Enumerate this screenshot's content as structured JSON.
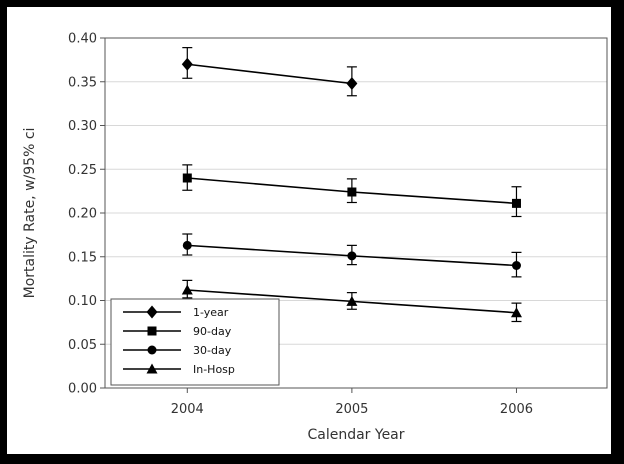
{
  "chart_data": {
    "type": "line",
    "title": "",
    "xlabel": "Calendar Year",
    "ylabel": "Mortality Rate, w/95% ci",
    "x": [
      "2004",
      "2005",
      "2006"
    ],
    "xlim": [
      2003.5,
      2006.55
    ],
    "ylim": [
      0.0,
      0.4
    ],
    "yticks": [
      "0.00",
      "0.05",
      "0.10",
      "0.15",
      "0.20",
      "0.25",
      "0.30",
      "0.35",
      "0.40"
    ],
    "grid": "horizontal",
    "legend_position": "bottom-left",
    "series": [
      {
        "name": "1-year",
        "marker": "diamond",
        "values": [
          0.37,
          0.348,
          null
        ],
        "lower": [
          0.354,
          0.334,
          null
        ],
        "upper": [
          0.389,
          0.367,
          null
        ]
      },
      {
        "name": "90-day",
        "marker": "square",
        "values": [
          0.24,
          0.224,
          0.211
        ],
        "lower": [
          0.226,
          0.212,
          0.196
        ],
        "upper": [
          0.255,
          0.239,
          0.23
        ]
      },
      {
        "name": "30-day",
        "marker": "circle",
        "values": [
          0.163,
          0.151,
          0.14
        ],
        "lower": [
          0.152,
          0.141,
          0.127
        ],
        "upper": [
          0.176,
          0.163,
          0.155
        ]
      },
      {
        "name": "In-Hosp",
        "marker": "triangle",
        "values": [
          0.112,
          0.099,
          0.086
        ],
        "lower": [
          0.103,
          0.09,
          0.076
        ],
        "upper": [
          0.123,
          0.109,
          0.097
        ]
      }
    ]
  },
  "colors": {
    "line": "#000000",
    "grid": "#d8d8d8",
    "axis": "#555555",
    "frame": "#000000",
    "background": "#ffffff"
  }
}
